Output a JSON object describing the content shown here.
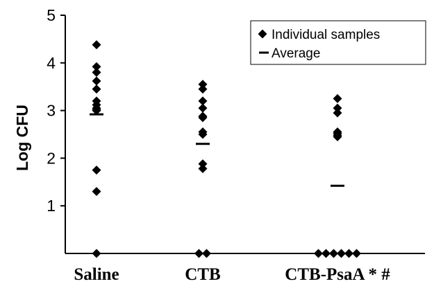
{
  "chart_data": {
    "type": "scatter",
    "title": "",
    "xlabel": "",
    "ylabel": "Log CFU",
    "ylim": [
      0,
      5
    ],
    "yticks": [
      "1",
      "2",
      "3",
      "4",
      "5"
    ],
    "grid": false,
    "legend_position": "top-right",
    "categories": [
      "Saline",
      "CTB",
      "CTB-PsaA * #"
    ],
    "series": [
      {
        "name": "Individual samples",
        "marker": "diamond",
        "points": [
          {
            "category": "Saline",
            "values": [
              4.38,
              3.92,
              3.8,
              3.62,
              3.45,
              3.2,
              3.12,
              3.05,
              3.02,
              3.0,
              1.75,
              1.3,
              0.0
            ]
          },
          {
            "category": "CTB",
            "values": [
              3.55,
              3.45,
              3.2,
              3.05,
              2.88,
              2.85,
              2.55,
              2.5,
              1.88,
              1.78,
              0.0,
              0.0
            ]
          },
          {
            "category": "CTB-PsaA * #",
            "values": [
              3.25,
              3.05,
              2.95,
              2.55,
              2.52,
              2.48,
              2.45,
              0.0,
              0.0,
              0.0,
              0.0,
              0.0,
              0.0
            ]
          }
        ]
      },
      {
        "name": "Average",
        "marker": "dash",
        "points": [
          {
            "category": "Saline",
            "value": 2.92
          },
          {
            "category": "CTB",
            "value": 2.3
          },
          {
            "category": "CTB-PsaA * #",
            "value": 1.42
          }
        ]
      }
    ]
  }
}
